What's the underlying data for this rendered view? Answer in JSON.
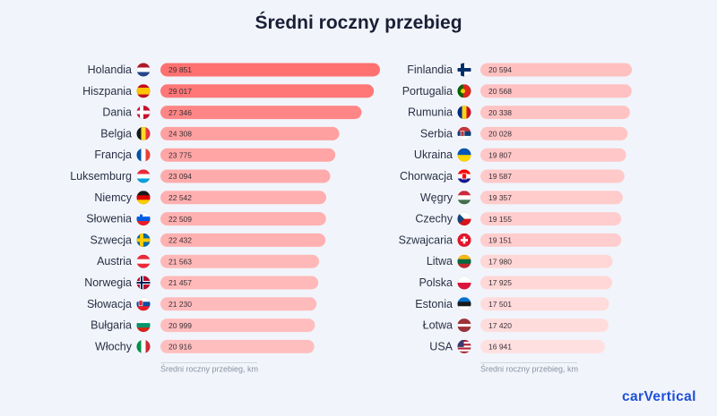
{
  "title": "Średni roczny przebieg",
  "brand": "carVertical",
  "chart_data": [
    {
      "type": "bar",
      "orientation": "horizontal",
      "xlabel": "Średni roczny przebieg, km",
      "categories": [
        "Holandia",
        "Hiszpania",
        "Dania",
        "Belgia",
        "Francja",
        "Luksemburg",
        "Niemcy",
        "Słowenia",
        "Szwecja",
        "Austria",
        "Norwegia",
        "Słowacja",
        "Bułgaria",
        "Włochy"
      ],
      "flags": [
        "nl",
        "es",
        "dk",
        "be",
        "fr",
        "lu",
        "de",
        "si",
        "se",
        "at",
        "no",
        "sk",
        "bg",
        "it"
      ],
      "values": [
        29851,
        29017,
        27346,
        24308,
        23775,
        23094,
        22542,
        22509,
        22432,
        21563,
        21457,
        21230,
        20999,
        20916
      ],
      "labels": [
        "29 851",
        "29 017",
        "27 346",
        "24 308",
        "23 775",
        "23 094",
        "22 542",
        "22 509",
        "22 432",
        "21 563",
        "21 457",
        "21 230",
        "20 999",
        "20 916"
      ]
    },
    {
      "type": "bar",
      "orientation": "horizontal",
      "xlabel": "Średni roczny przebieg, km",
      "categories": [
        "Finlandia",
        "Portugalia",
        "Rumunia",
        "Serbia",
        "Ukraina",
        "Chorwacja",
        "Węgry",
        "Czechy",
        "Szwajcaria",
        "Litwa",
        "Polska",
        "Estonia",
        "Łotwa",
        "USA"
      ],
      "flags": [
        "fi",
        "pt",
        "ro",
        "rs",
        "ua",
        "hr",
        "hu",
        "cz",
        "ch",
        "lt",
        "pl",
        "ee",
        "lv",
        "us"
      ],
      "values": [
        20594,
        20568,
        20338,
        20028,
        19807,
        19587,
        19357,
        19155,
        19151,
        17980,
        17925,
        17501,
        17420,
        16941
      ],
      "labels": [
        "20 594",
        "20 568",
        "20 338",
        "20 028",
        "19 807",
        "19 587",
        "19 357",
        "19 155",
        "19 151",
        "17 980",
        "17 925",
        "17 501",
        "17 420",
        "16 941"
      ]
    }
  ]
}
